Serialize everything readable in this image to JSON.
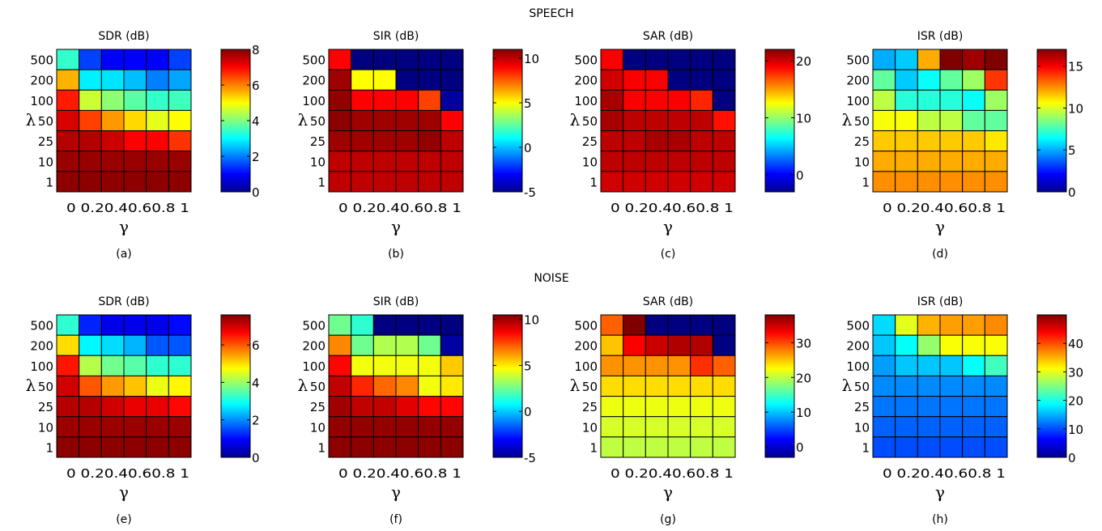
{
  "row_titles": [
    "SPEECH",
    "NOISE"
  ],
  "x_ticks": [
    "0",
    "0.2",
    "0.4",
    "0.6",
    "0.8",
    "1"
  ],
  "x_tick_text": "0 0.20.40.60.8 1",
  "y_ticks": [
    "500",
    "200",
    "100",
    "50",
    "25",
    "10",
    "1"
  ],
  "xlabel": "γ",
  "ylabel": "λ",
  "chart_data": [
    {
      "type": "heatmap",
      "row": "SPEECH",
      "title": "SDR (dB)",
      "caption": "(a)",
      "clim": [
        0,
        8
      ],
      "cbar_ticks": [
        "0",
        "2",
        "4",
        "6",
        "8"
      ],
      "cbar_values": [
        0,
        2,
        4,
        6,
        8
      ],
      "values": [
        [
          3.4,
          1.5,
          1.0,
          1.0,
          1.0,
          1.5
        ],
        [
          5.6,
          2.9,
          2.8,
          2.5,
          2.0,
          2.3
        ],
        [
          6.8,
          4.6,
          4.1,
          3.7,
          3.4,
          3.5
        ],
        [
          7.3,
          6.5,
          5.8,
          5.3,
          4.8,
          5.0
        ],
        [
          7.6,
          7.6,
          7.4,
          7.0,
          7.0,
          6.6
        ],
        [
          7.8,
          7.8,
          7.8,
          7.8,
          7.8,
          7.8
        ],
        [
          7.9,
          7.9,
          7.9,
          7.9,
          7.9,
          7.9
        ]
      ]
    },
    {
      "type": "heatmap",
      "row": "SPEECH",
      "title": "SIR (dB)",
      "caption": "(b)",
      "clim": [
        -5,
        11
      ],
      "cbar_ticks": [
        "-5",
        "0",
        "5",
        "10"
      ],
      "cbar_values": [
        -5,
        0,
        5,
        10
      ],
      "values": [
        [
          9.0,
          -5,
          -5,
          -5,
          -5,
          -5
        ],
        [
          10.5,
          5.0,
          5.0,
          -5,
          -5,
          -5
        ],
        [
          10.7,
          9.0,
          9.0,
          9.0,
          8.0,
          -4.5
        ],
        [
          10.8,
          10.5,
          10.5,
          10.5,
          10.5,
          9.0
        ],
        [
          10.5,
          10.5,
          10.5,
          10.5,
          10.7,
          10.0
        ],
        [
          10.0,
          10.0,
          10.0,
          10.0,
          10.0,
          10.0
        ],
        [
          10.0,
          10.0,
          10.0,
          10.0,
          10.0,
          10.0
        ]
      ]
    },
    {
      "type": "heatmap",
      "row": "SPEECH",
      "title": "SAR (dB)",
      "caption": "(c)",
      "clim": [
        -3,
        22
      ],
      "cbar_ticks": [
        "0",
        "10",
        "20"
      ],
      "cbar_values": [
        0,
        10,
        20
      ],
      "values": [
        [
          19,
          -3,
          -3,
          -3,
          -3,
          -3
        ],
        [
          20,
          19,
          19,
          -3,
          -3,
          -3
        ],
        [
          21,
          19,
          19,
          19,
          18,
          -3
        ],
        [
          21,
          20.5,
          20.5,
          20.5,
          20.5,
          18.5
        ],
        [
          20.5,
          20.5,
          21,
          21,
          20.5,
          20.5
        ],
        [
          20.5,
          20.5,
          20.5,
          20.5,
          20.5,
          20.5
        ],
        [
          20,
          20,
          20,
          20,
          20,
          20
        ]
      ]
    },
    {
      "type": "heatmap",
      "row": "SPEECH",
      "title": "ISR (dB)",
      "caption": "(d)",
      "clim": [
        0,
        17
      ],
      "cbar_ticks": [
        "0",
        "5",
        "10",
        "15"
      ],
      "cbar_values": [
        0,
        5,
        10,
        15
      ],
      "values": [
        [
          5.0,
          5.5,
          12.0,
          17.0,
          16.5,
          17.0
        ],
        [
          8.0,
          5.5,
          6.5,
          8.0,
          9.0,
          14.0
        ],
        [
          9.5,
          7.0,
          7.0,
          7.0,
          6.5,
          9.0
        ],
        [
          10.5,
          10.5,
          9.5,
          9.5,
          8.0,
          8.0
        ],
        [
          11.5,
          11.5,
          11.5,
          11.5,
          11.5,
          11.0
        ],
        [
          12.0,
          12.0,
          12.0,
          12.0,
          12.0,
          12.0
        ],
        [
          12.5,
          12.5,
          12.5,
          12.5,
          12.5,
          12.5
        ]
      ]
    },
    {
      "type": "heatmap",
      "row": "NOISE",
      "title": "SDR (dB)",
      "caption": "(e)",
      "clim": [
        0,
        7.6
      ],
      "cbar_ticks": [
        "0",
        "2",
        "4",
        "6"
      ],
      "cbar_values": [
        0,
        2,
        4,
        6
      ],
      "values": [
        [
          3.2,
          1.2,
          0.8,
          0.8,
          0.8,
          1.0
        ],
        [
          5.0,
          2.8,
          2.6,
          2.3,
          1.6,
          1.6
        ],
        [
          6.5,
          4.2,
          3.7,
          3.5,
          3.2,
          3.2
        ],
        [
          7.0,
          6.0,
          5.5,
          5.2,
          4.6,
          4.8
        ],
        [
          7.2,
          7.2,
          7.0,
          6.8,
          6.8,
          6.6
        ],
        [
          7.4,
          7.4,
          7.4,
          7.4,
          7.4,
          7.4
        ],
        [
          7.5,
          7.5,
          7.5,
          7.5,
          7.5,
          7.5
        ]
      ]
    },
    {
      "type": "heatmap",
      "row": "NOISE",
      "title": "SIR (dB)",
      "caption": "(f)",
      "clim": [
        -5,
        10.5
      ],
      "cbar_ticks": [
        "-5",
        "0",
        "5",
        "10"
      ],
      "cbar_values": [
        -5,
        0,
        5,
        10
      ],
      "values": [
        [
          2.5,
          1.5,
          -5,
          -5,
          -5,
          -5
        ],
        [
          6.5,
          2.5,
          3.5,
          3.5,
          2.5,
          -4.5
        ],
        [
          8.5,
          4.5,
          4.5,
          4.5,
          4.5,
          5.5
        ],
        [
          9.5,
          8.0,
          7.0,
          6.5,
          4.5,
          5.0
        ],
        [
          10.0,
          9.5,
          9.5,
          9.0,
          8.5,
          8.5
        ],
        [
          10.2,
          10.2,
          10.2,
          10.2,
          10.2,
          10.2
        ],
        [
          10.3,
          10.3,
          10.3,
          10.3,
          10.3,
          10.3
        ]
      ]
    },
    {
      "type": "heatmap",
      "row": "NOISE",
      "title": "SAR (dB)",
      "caption": "(g)",
      "clim": [
        -3,
        38
      ],
      "cbar_ticks": [
        "0",
        "10",
        "20",
        "30"
      ],
      "cbar_values": [
        0,
        10,
        20,
        30
      ],
      "values": [
        [
          29,
          38,
          -3,
          -3,
          -3,
          -3
        ],
        [
          25,
          33,
          35,
          36,
          36,
          -3
        ],
        [
          27,
          27,
          27,
          27,
          31,
          29
        ],
        [
          24,
          24,
          24,
          24,
          24,
          24
        ],
        [
          22,
          22,
          22,
          22,
          22,
          22
        ],
        [
          21,
          21,
          21,
          21,
          21,
          21
        ],
        [
          20,
          20,
          20,
          20,
          20,
          20
        ]
      ]
    },
    {
      "type": "heatmap",
      "row": "NOISE",
      "title": "ISR (dB)",
      "caption": "(h)",
      "clim": [
        0,
        50
      ],
      "cbar_ticks": [
        "0",
        "10",
        "20",
        "30",
        "40"
      ],
      "cbar_values": [
        0,
        10,
        20,
        30,
        40
      ],
      "values": [
        [
          17,
          30,
          35,
          36,
          36,
          37
        ],
        [
          16,
          19,
          26,
          31,
          31,
          31
        ],
        [
          14,
          16,
          16,
          16,
          19,
          22
        ],
        [
          13,
          13,
          13,
          13,
          13,
          13
        ],
        [
          12,
          12,
          12,
          12,
          12,
          12
        ],
        [
          11,
          11,
          11,
          11,
          11,
          11
        ],
        [
          10,
          10,
          10,
          10,
          10,
          10
        ]
      ]
    }
  ]
}
